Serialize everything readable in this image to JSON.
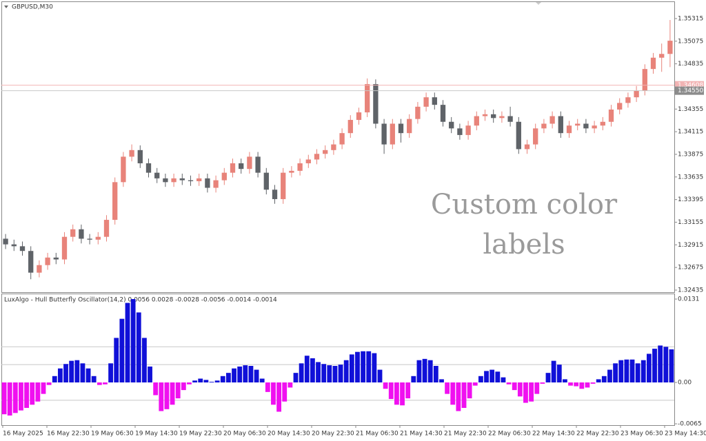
{
  "chart_data": [
    {
      "type": "candlestick",
      "title": "GBPUSD,M30",
      "annotation": [
        "Custom color",
        "labels"
      ],
      "up_color": "#e8837a",
      "down_color": "#5f6368",
      "open": [
        1.3298,
        1.3292,
        1.329,
        1.3285,
        1.3262,
        1.327,
        1.3278,
        1.3276,
        1.33,
        1.3308,
        1.3298,
        1.3297,
        1.33,
        1.3318,
        1.3358,
        1.3385,
        1.3392,
        1.3378,
        1.3368,
        1.3362,
        1.3358,
        1.3362,
        1.336,
        1.3359,
        1.3362,
        1.3352,
        1.336,
        1.3368,
        1.3378,
        1.3372,
        1.3385,
        1.3368,
        1.335,
        1.334,
        1.3368,
        1.337,
        1.3378,
        1.3382,
        1.3388,
        1.3392,
        1.3398,
        1.341,
        1.3424,
        1.3432,
        1.3462,
        1.342,
        1.3398,
        1.342,
        1.341,
        1.3425,
        1.3438,
        1.3448,
        1.344,
        1.3422,
        1.3415,
        1.3408,
        1.3418,
        1.3428,
        1.343,
        1.3426,
        1.3428,
        1.3422,
        1.3393,
        1.3398,
        1.3415,
        1.342,
        1.3428,
        1.341,
        1.3418,
        1.342,
        1.3415,
        1.3418,
        1.3422,
        1.3435,
        1.3442,
        1.3448,
        1.3455,
        1.3478,
        1.349,
        1.3494
      ],
      "high": [
        1.3303,
        1.3297,
        1.3295,
        1.329,
        1.3275,
        1.3283,
        1.3283,
        1.3305,
        1.3313,
        1.3313,
        1.3303,
        1.3305,
        1.3323,
        1.3363,
        1.339,
        1.3398,
        1.3397,
        1.3383,
        1.3373,
        1.3367,
        1.3367,
        1.3367,
        1.3365,
        1.3367,
        1.3367,
        1.3365,
        1.3373,
        1.3383,
        1.3383,
        1.339,
        1.339,
        1.3373,
        1.3355,
        1.3373,
        1.3375,
        1.3383,
        1.3387,
        1.3393,
        1.3397,
        1.3403,
        1.3415,
        1.3429,
        1.3437,
        1.3468,
        1.3467,
        1.3425,
        1.3425,
        1.3425,
        1.343,
        1.3443,
        1.3453,
        1.3453,
        1.3445,
        1.3427,
        1.342,
        1.3423,
        1.3433,
        1.3435,
        1.3435,
        1.3433,
        1.3438,
        1.3427,
        1.3403,
        1.342,
        1.3425,
        1.3433,
        1.3433,
        1.3423,
        1.3425,
        1.3425,
        1.3423,
        1.3427,
        1.344,
        1.3447,
        1.3453,
        1.346,
        1.3483,
        1.3495,
        1.3505,
        1.353
      ],
      "low": [
        1.3287,
        1.3285,
        1.328,
        1.3255,
        1.3257,
        1.3265,
        1.3271,
        1.3271,
        1.3295,
        1.3293,
        1.3292,
        1.3292,
        1.3295,
        1.3313,
        1.3353,
        1.338,
        1.3373,
        1.3363,
        1.3357,
        1.3353,
        1.3353,
        1.3355,
        1.3354,
        1.3354,
        1.3347,
        1.3347,
        1.3355,
        1.3363,
        1.3367,
        1.3367,
        1.3363,
        1.3345,
        1.3335,
        1.3335,
        1.3363,
        1.3365,
        1.3373,
        1.3377,
        1.3383,
        1.3387,
        1.3393,
        1.3405,
        1.3419,
        1.3427,
        1.3415,
        1.3388,
        1.3393,
        1.34,
        1.3405,
        1.342,
        1.3433,
        1.3435,
        1.3417,
        1.341,
        1.3403,
        1.3403,
        1.3413,
        1.3423,
        1.3421,
        1.3421,
        1.3417,
        1.3388,
        1.3388,
        1.3393,
        1.341,
        1.3415,
        1.3405,
        1.3405,
        1.3413,
        1.341,
        1.341,
        1.3413,
        1.3417,
        1.343,
        1.3437,
        1.3443,
        1.345,
        1.3473,
        1.3475,
        1.348
      ],
      "close": [
        1.3292,
        1.329,
        1.3285,
        1.3262,
        1.327,
        1.3278,
        1.3276,
        1.33,
        1.3308,
        1.3298,
        1.3297,
        1.33,
        1.3318,
        1.3358,
        1.3385,
        1.3392,
        1.3378,
        1.3368,
        1.3362,
        1.3358,
        1.3362,
        1.336,
        1.3359,
        1.3362,
        1.3352,
        1.336,
        1.3368,
        1.3378,
        1.3372,
        1.3385,
        1.3368,
        1.335,
        1.334,
        1.3368,
        1.337,
        1.3378,
        1.3382,
        1.3388,
        1.3392,
        1.3398,
        1.341,
        1.3424,
        1.3432,
        1.3462,
        1.342,
        1.3398,
        1.342,
        1.341,
        1.3425,
        1.3438,
        1.3448,
        1.344,
        1.3422,
        1.3415,
        1.3408,
        1.3418,
        1.3428,
        1.343,
        1.3426,
        1.3428,
        1.3422,
        1.3393,
        1.3398,
        1.3415,
        1.342,
        1.3428,
        1.341,
        1.3418,
        1.342,
        1.3415,
        1.3418,
        1.3422,
        1.3435,
        1.3442,
        1.3448,
        1.3455,
        1.3478,
        1.349,
        1.3494,
        1.3508
      ],
      "ylim": [
        1.32413,
        1.3549
      ],
      "yticks": [
        1.35315,
        1.35075,
        1.34835,
        1.34355,
        1.34115,
        1.33875,
        1.33635,
        1.33395,
        1.33155,
        1.32915,
        1.32675,
        1.32435
      ],
      "price_lines": [
        {
          "value": 1.34608,
          "label": "1.34608",
          "color": "#f2b4b4"
        },
        {
          "value": 1.3455,
          "label": "1.34550",
          "color": "#c8c8c8",
          "label_color": "#8c8c8c"
        }
      ]
    },
    {
      "type": "bar",
      "title": "LuxAlgo - Hull Butterfly Oscillator(14,2) 0.0056 0.0028 -0.0028 -0.0056 -0.0014 -0.0014",
      "positive_color": "#1010d8",
      "negative_color": "#f010f0",
      "values": [
        -0.005,
        -0.0052,
        -0.0048,
        -0.0044,
        -0.004,
        -0.0035,
        -0.003,
        -0.0018,
        -0.0004,
        0.001,
        0.0022,
        0.0029,
        0.0034,
        0.0035,
        0.003,
        0.0022,
        0.001,
        -0.0004,
        -0.0003,
        0.003,
        0.007,
        0.01,
        0.0125,
        0.0131,
        0.011,
        0.007,
        0.0025,
        -0.002,
        -0.0045,
        -0.0042,
        -0.0035,
        -0.0025,
        -0.0012,
        -0.0003,
        0.0003,
        0.0006,
        0.0004,
        0.0001,
        0.0003,
        0.001,
        0.0015,
        0.0022,
        0.0025,
        0.0027,
        0.0026,
        0.002,
        0.0006,
        -0.0015,
        -0.0035,
        -0.0046,
        -0.003,
        -0.0008,
        0.0015,
        0.003,
        0.0042,
        0.0038,
        0.0032,
        0.0029,
        0.0027,
        0.0026,
        0.0028,
        0.0035,
        0.0044,
        0.0048,
        0.0049,
        0.0049,
        0.0046,
        0.002,
        -0.001,
        -0.0026,
        -0.0035,
        -0.0036,
        -0.0025,
        0.001,
        0.0035,
        0.0037,
        0.0035,
        0.0026,
        0.0005,
        -0.0018,
        -0.0035,
        -0.0045,
        -0.004,
        -0.0025,
        -0.0005,
        0.001,
        0.0018,
        0.002,
        0.0017,
        0.0008,
        -0.0003,
        -0.0012,
        -0.0022,
        -0.0032,
        -0.003,
        -0.0018,
        -0.0002,
        0.0015,
        0.0034,
        0.0028,
        0.0005,
        -0.0005,
        -0.0006,
        -0.001,
        -0.0008,
        -0.0002,
        0.0005,
        0.001,
        0.002,
        0.003,
        0.0035,
        0.0036,
        0.0036,
        0.003,
        0.0035,
        0.0045,
        0.0053,
        0.0058,
        0.0056,
        0.0052
      ],
      "levels": [
        0.0056,
        0.0028,
        -0.0028
      ],
      "ylim": [
        -0.00671,
        0.01386
      ],
      "yticks": [
        0.0131,
        {
          "value": 0,
          "label": "0.00"
        },
        -0.0065
      ],
      "time_labels": [
        "16 May 2025",
        "16 May 22:30",
        "19 May 06:30",
        "19 May 14:30",
        "19 May 22:30",
        "20 May 06:30",
        "20 May 14:30",
        "20 May 22:30",
        "21 May 06:30",
        "21 May 14:30",
        "21 May 22:30",
        "22 May 06:30",
        "22 May 14:30",
        "22 May 22:30",
        "23 May 06:30",
        "23 May 14:30"
      ]
    }
  ]
}
